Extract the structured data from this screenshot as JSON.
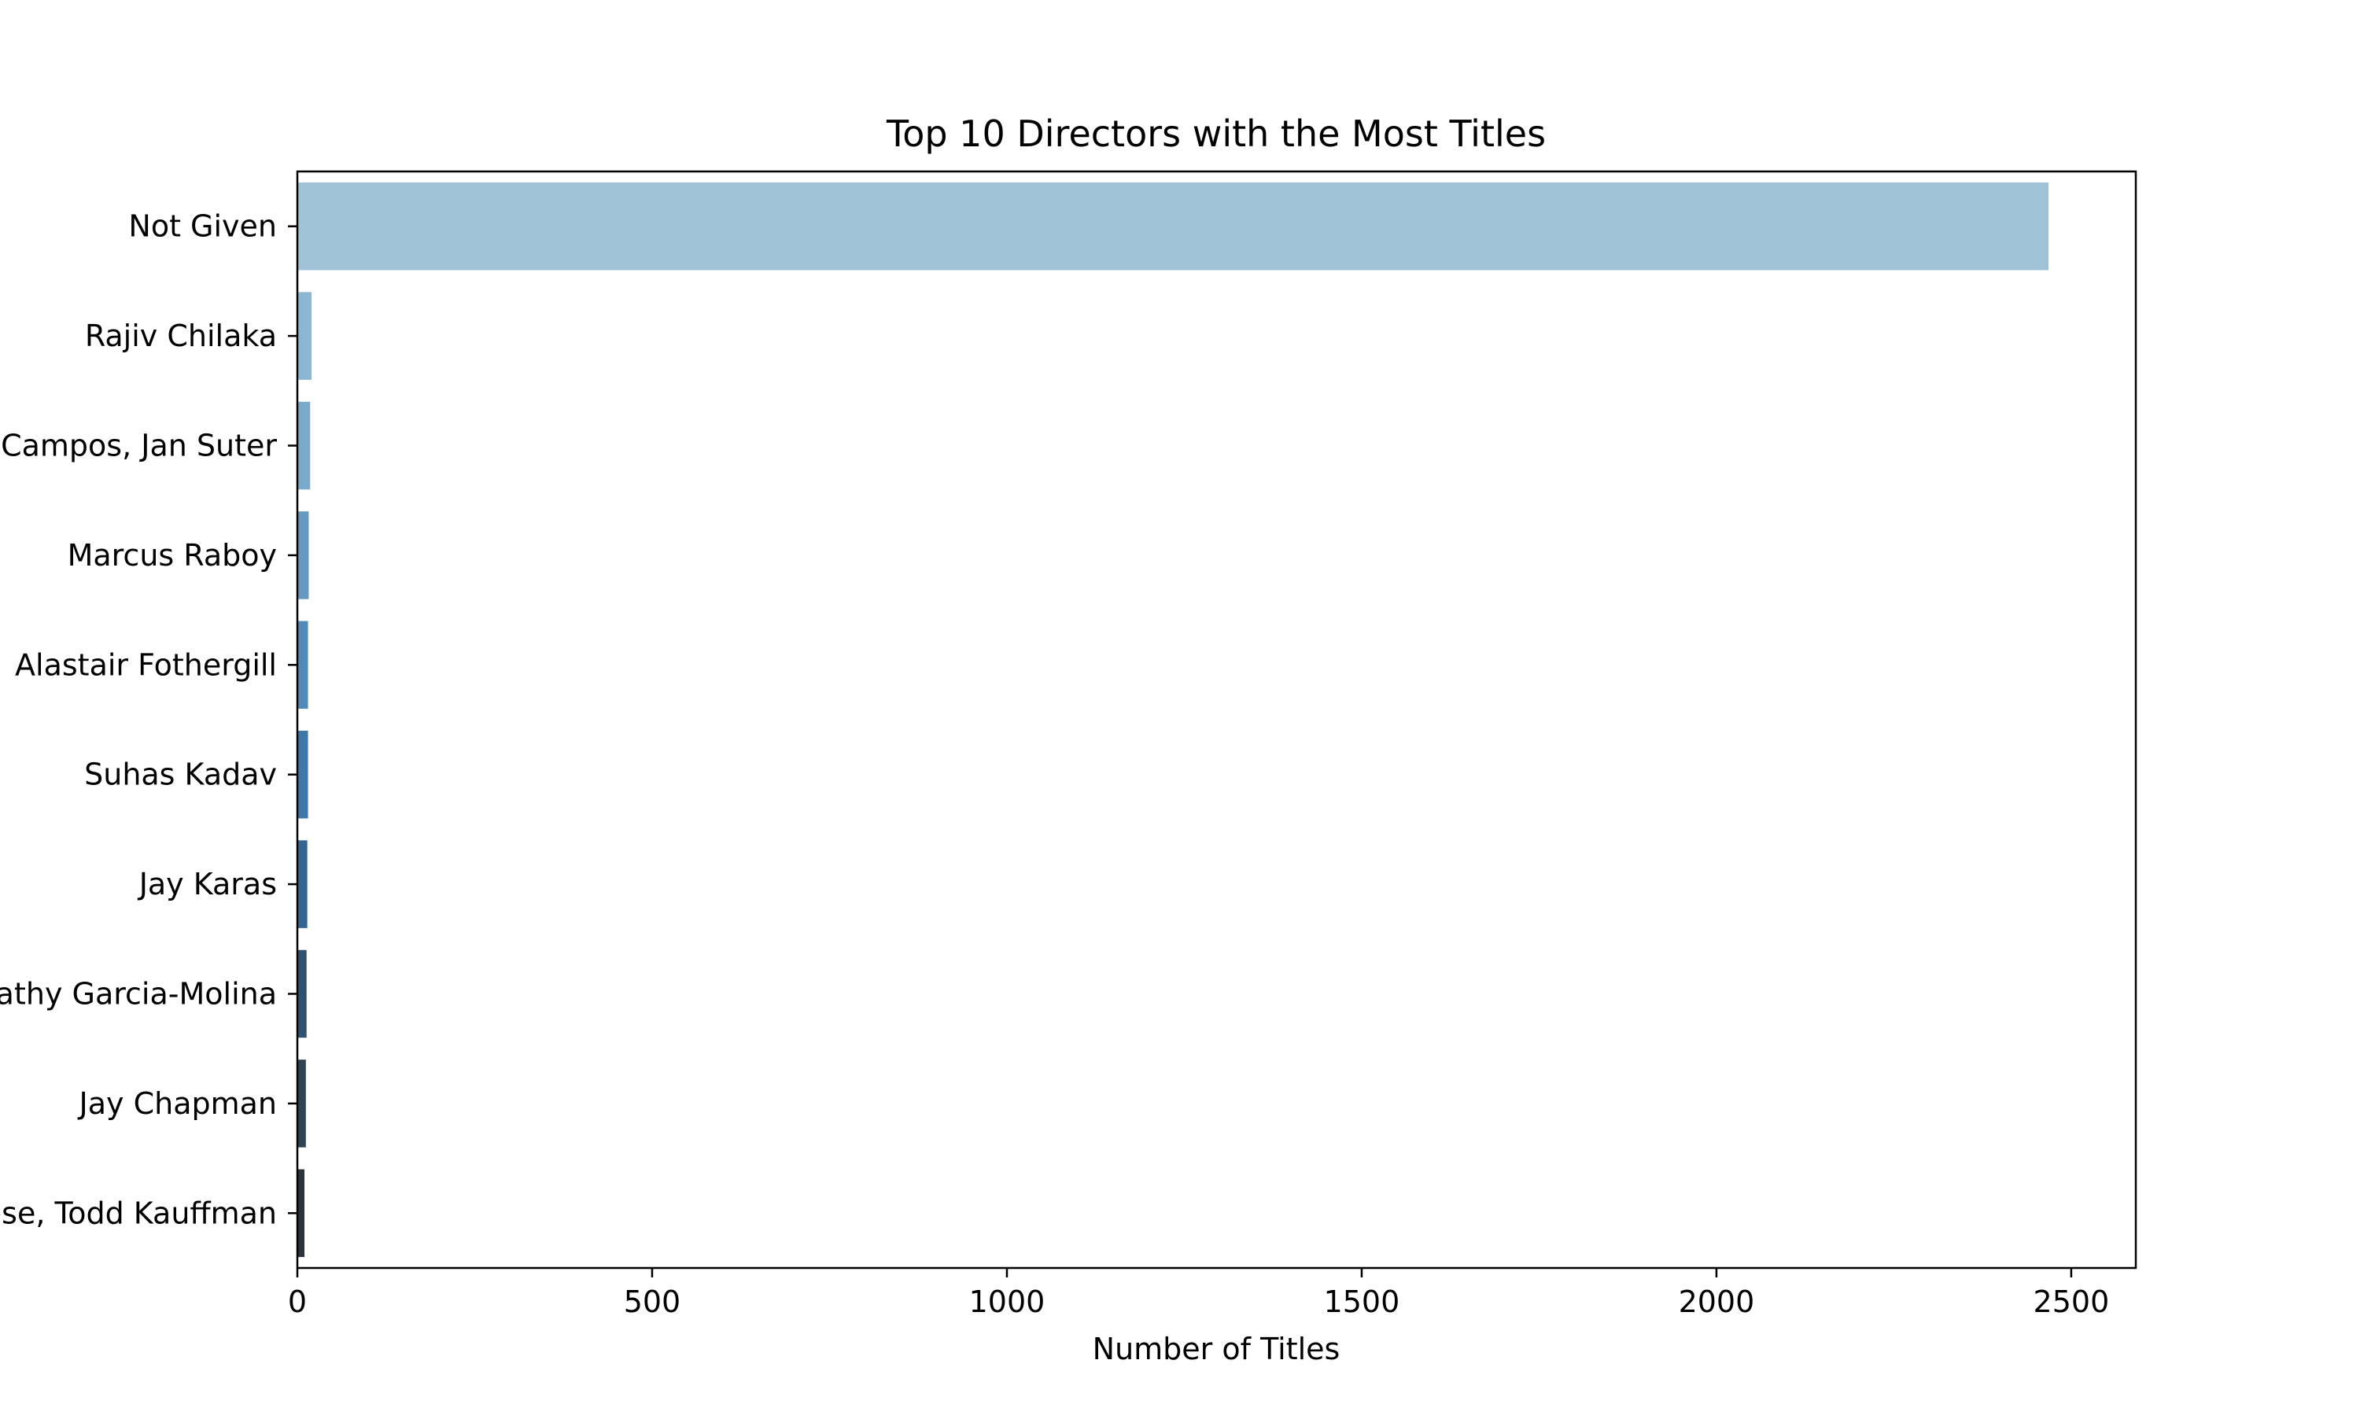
{
  "chart_data": {
    "type": "bar",
    "orientation": "horizontal",
    "title": "Top 10 Directors with the Most Titles",
    "xlabel": "Number of Titles",
    "ylabel": "",
    "xlim": [
      0,
      2591
    ],
    "xticks": [
      0,
      500,
      1000,
      1500,
      2000,
      2500
    ],
    "grid": false,
    "legend": "none",
    "categories": [
      "Not Given",
      "Rajiv Chilaka",
      "Raúl Campos, Jan Suter",
      "Marcus Raboy",
      "Alastair Fothergill",
      "Suhas Kadav",
      "Jay Karas",
      "Cathy Garcia-Molina",
      "Jay Chapman",
      "Martin Scorsese, Todd Kauffman"
    ],
    "values": [
      2468,
      20,
      18,
      16,
      15,
      15,
      14,
      13,
      12,
      10
    ],
    "bar_colors": [
      "#9fc2d7",
      "#8cb7d3",
      "#79a9cb",
      "#6699c0",
      "#4f8ab8",
      "#3d78a8",
      "#346593",
      "#2f5270",
      "#2e4354",
      "#2b333a"
    ]
  }
}
